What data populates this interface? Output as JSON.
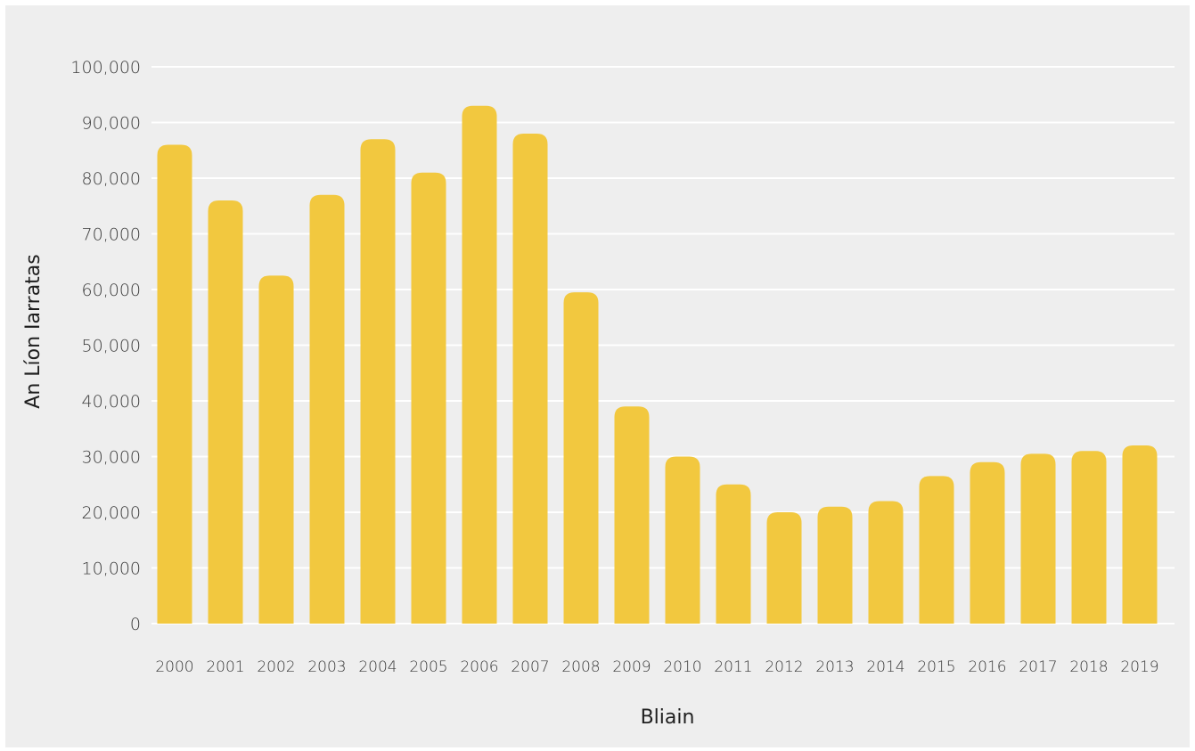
{
  "chart_data": {
    "type": "bar",
    "title": "",
    "xlabel": "Bliain",
    "ylabel": "An Líon Iarratas",
    "categories": [
      "2000",
      "2001",
      "2002",
      "2003",
      "2004",
      "2005",
      "2006",
      "2007",
      "2008",
      "2009",
      "2010",
      "2011",
      "2012",
      "2013",
      "2014",
      "2015",
      "2016",
      "2017",
      "2018",
      "2019"
    ],
    "values": [
      86000,
      76000,
      62500,
      77000,
      87000,
      81000,
      93000,
      88000,
      59500,
      39000,
      30000,
      25000,
      20000,
      21000,
      22000,
      26500,
      29000,
      30500,
      31000,
      32000
    ],
    "ylim": [
      0,
      100000
    ],
    "yticks": [
      0,
      10000,
      20000,
      30000,
      40000,
      50000,
      60000,
      70000,
      80000,
      90000,
      100000
    ],
    "ytick_labels": [
      "0",
      "10,000",
      "20,000",
      "30,000",
      "40,000",
      "50,000",
      "60,000",
      "70,000",
      "80,000",
      "90,000",
      "100,000"
    ],
    "grid": true,
    "legend": "none",
    "bar_color": "#f2c83f",
    "background_color": "#eeeeee",
    "grid_color": "#ffffff"
  }
}
